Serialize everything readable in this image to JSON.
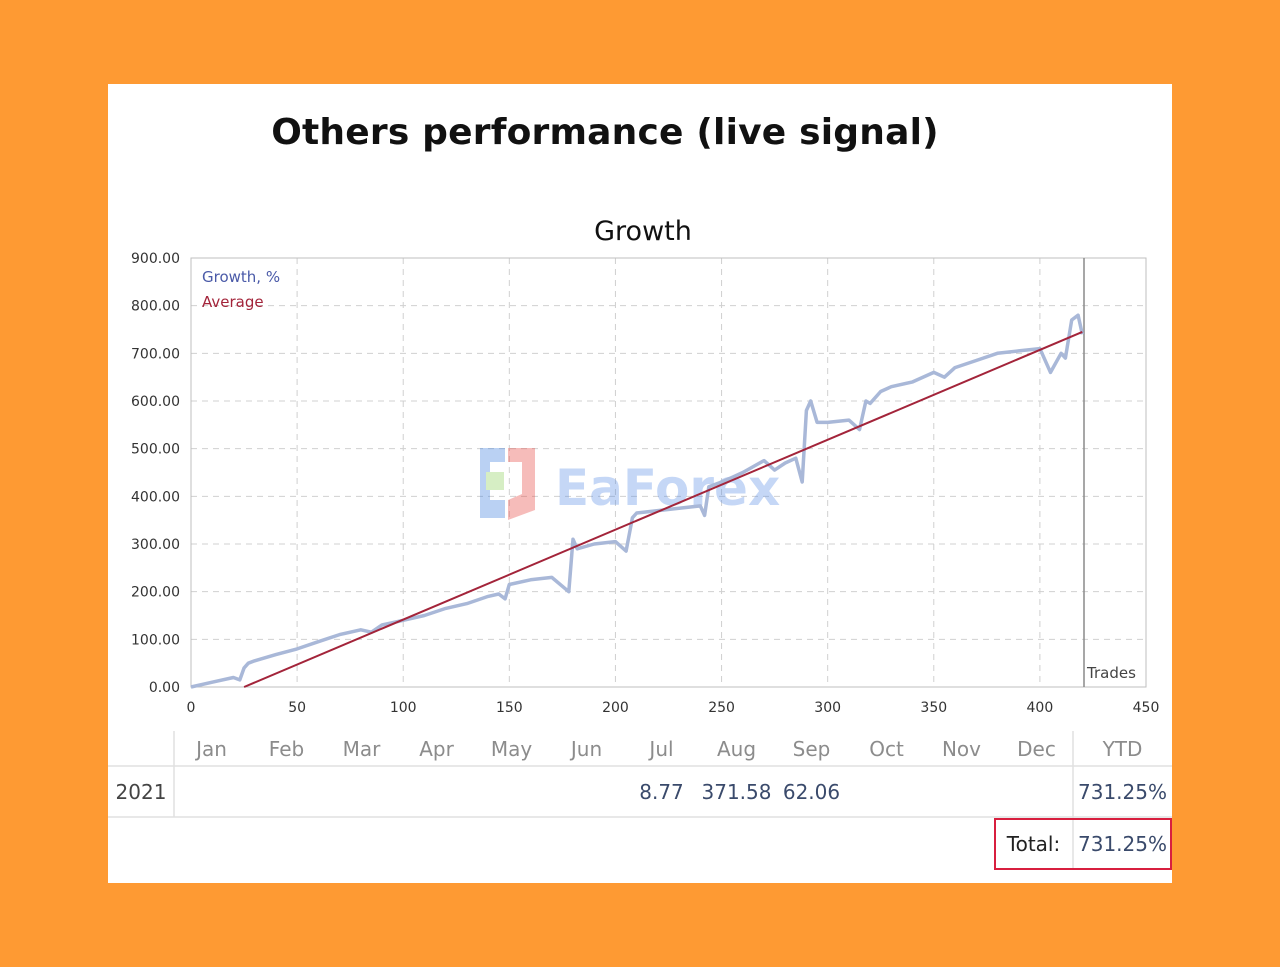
{
  "heading": "Others performance (live signal)",
  "colors": {
    "frame": "#fe9a33",
    "growth_line": "#a9b8d8",
    "average_line": "#a3243a",
    "total_box_border": "#d81f3f"
  },
  "watermark": "EaForex",
  "chart_data": {
    "type": "line",
    "title": "Growth",
    "xlabel": "Trades",
    "ylabel": "",
    "xlim": [
      0,
      450
    ],
    "ylim": [
      0,
      900
    ],
    "x_ticks": [
      "0",
      "50",
      "100",
      "150",
      "200",
      "250",
      "300",
      "350",
      "400",
      "450"
    ],
    "y_ticks": [
      "0.00",
      "100.00",
      "200.00",
      "300.00",
      "400.00",
      "500.00",
      "600.00",
      "700.00",
      "800.00",
      "900.00"
    ],
    "legend": [
      "Growth, %",
      "Average"
    ],
    "legend_position": "top-left",
    "grid": true,
    "series": [
      {
        "name": "Growth, %",
        "x": [
          0,
          10,
          20,
          23,
          25,
          27,
          30,
          40,
          50,
          60,
          70,
          80,
          85,
          90,
          100,
          110,
          120,
          130,
          140,
          145,
          148,
          150,
          160,
          170,
          178,
          180,
          182,
          190,
          200,
          205,
          208,
          210,
          220,
          230,
          240,
          242,
          244,
          250,
          255,
          260,
          270,
          275,
          280,
          285,
          288,
          290,
          292,
          295,
          300,
          310,
          315,
          318,
          320,
          325,
          330,
          340,
          350,
          355,
          360,
          370,
          380,
          390,
          400,
          405,
          410,
          412,
          415,
          418,
          420
        ],
        "y": [
          0,
          10,
          20,
          15,
          40,
          50,
          55,
          68,
          80,
          95,
          110,
          120,
          115,
          130,
          140,
          150,
          165,
          175,
          190,
          195,
          185,
          215,
          225,
          230,
          200,
          310,
          290,
          300,
          305,
          285,
          355,
          365,
          370,
          375,
          380,
          360,
          420,
          430,
          440,
          450,
          475,
          455,
          470,
          480,
          430,
          580,
          600,
          555,
          555,
          560,
          540,
          600,
          595,
          620,
          630,
          640,
          660,
          650,
          670,
          685,
          700,
          705,
          710,
          660,
          700,
          690,
          770,
          780,
          740
        ]
      },
      {
        "name": "Average",
        "x": [
          25,
          420
        ],
        "y": [
          0,
          745
        ]
      }
    ]
  },
  "table": {
    "months": [
      "Jan",
      "Feb",
      "Mar",
      "Apr",
      "May",
      "Jun",
      "Jul",
      "Aug",
      "Sep",
      "Oct",
      "Nov",
      "Dec"
    ],
    "ytd_label": "YTD",
    "rows": [
      {
        "year": "2021",
        "values": [
          "",
          "",
          "",
          "",
          "",
          "",
          "8.77",
          "371.58",
          "62.06",
          "",
          "",
          ""
        ],
        "ytd": "731.25%"
      }
    ],
    "total_label": "Total:",
    "total_value": "731.25%"
  }
}
